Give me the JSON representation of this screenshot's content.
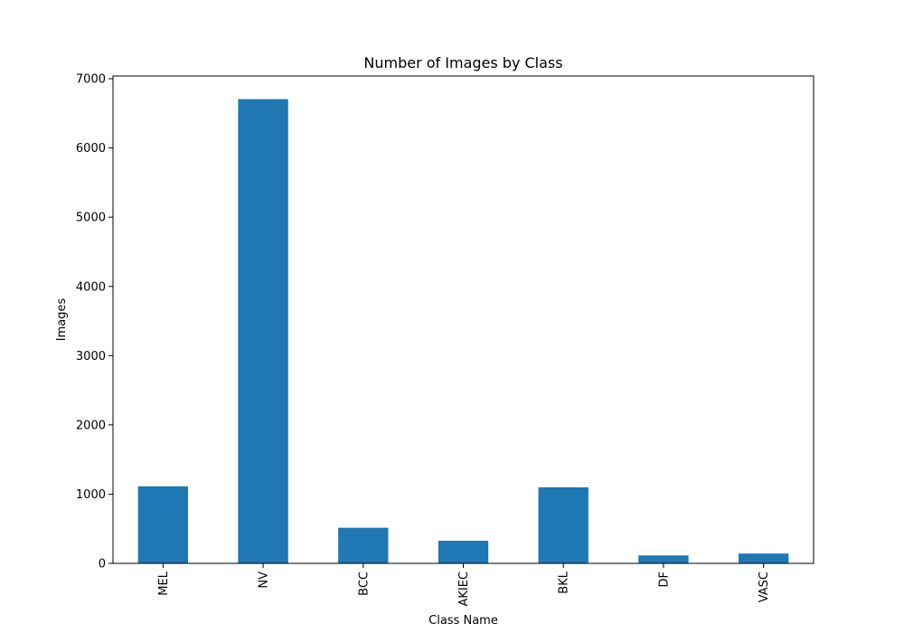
{
  "chart_data": {
    "type": "bar",
    "title": "Number of Images by Class",
    "xlabel": "Class Name",
    "ylabel": "Images",
    "categories": [
      "MEL",
      "NV",
      "BCC",
      "AKIEC",
      "BKL",
      "DF",
      "VASC"
    ],
    "values": [
      1113,
      6705,
      514,
      327,
      1099,
      115,
      142
    ],
    "ylim": [
      0,
      7040
    ],
    "yticks": [
      0,
      1000,
      2000,
      3000,
      4000,
      5000,
      6000,
      7000
    ],
    "bar_color": "#1f77b4",
    "grid": false,
    "legend": "none"
  }
}
